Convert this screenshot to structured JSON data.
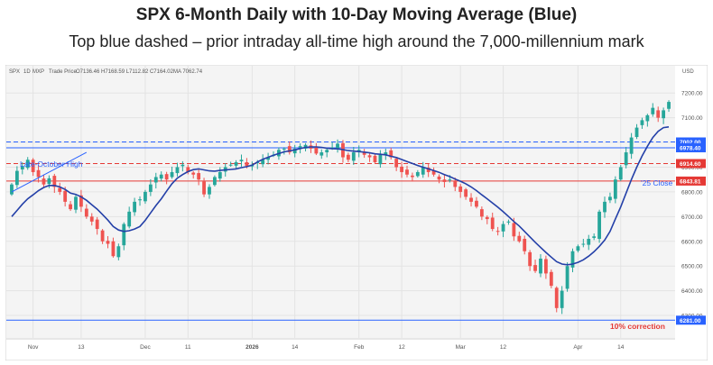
{
  "chart_data": {
    "type": "candlestick",
    "title": "SPX 6-Month Daily with 10-Day Moving Average (Blue)",
    "subtitle": "Top blue dashed – prior intraday all-time high around the 7,000-millennium mark",
    "header": {
      "symbol": "SPX",
      "interval": "1D",
      "exchange": "MXP",
      "price_type": "Trade Price",
      "ohlc": "O7136.46  H7168.59  L7112.82  C7164.02",
      "ma": "MA  7062.74",
      "currency": "USD"
    },
    "ylim": [
      6220,
      7270
    ],
    "y_ticks": [
      6300,
      6400,
      6500,
      6600,
      6700,
      6800,
      6900,
      7000,
      7100,
      7200
    ],
    "y_tick_labels": [
      "6300.00",
      "6400.00",
      "6500.00",
      "6600.00",
      "6700.00",
      "6800.00",
      "6900.00",
      "7000.00",
      "7100.00",
      "7200.00"
    ],
    "x_ticks": [
      {
        "label": "Nov",
        "index": 4,
        "bold": false
      },
      {
        "label": "13",
        "index": 13,
        "bold": false
      },
      {
        "label": "Dec",
        "index": 25,
        "bold": false
      },
      {
        "label": "11",
        "index": 33,
        "bold": false
      },
      {
        "label": "2026",
        "index": 45,
        "bold": true
      },
      {
        "label": "14",
        "index": 53,
        "bold": false
      },
      {
        "label": "Feb",
        "index": 65,
        "bold": false
      },
      {
        "label": "12",
        "index": 73,
        "bold": false
      },
      {
        "label": "Mar",
        "index": 84,
        "bold": false
      },
      {
        "label": "12",
        "index": 92,
        "bold": false
      },
      {
        "label": "Apr",
        "index": 106,
        "bold": false
      },
      {
        "label": "14",
        "index": 114,
        "bold": false
      }
    ],
    "levels": [
      {
        "value": 7002.0,
        "label": "7002.00",
        "color": "#2962ff",
        "style": "dashed"
      },
      {
        "value": 6978.4,
        "label": "6978.40",
        "color": "#2962ff",
        "style": "solid"
      },
      {
        "value": 6914.6,
        "label": "6914.60",
        "color": "#e53935",
        "style": "dashed"
      },
      {
        "value": 6843.81,
        "label": "6843.81",
        "color": "#e53935",
        "style": "solid"
      },
      {
        "value": 6281.0,
        "label": "6281.00",
        "color": "#2962ff",
        "style": "solid"
      }
    ],
    "annotations": [
      {
        "text": "Late-October High",
        "color": "#2962ff"
      },
      {
        "text": "'25 Close",
        "color": "#2962ff"
      },
      {
        "text": "10% correction",
        "color": "#e53935"
      }
    ],
    "close": [
      6830,
      6885,
      6905,
      6930,
      6880,
      6860,
      6830,
      6855,
      6820,
      6800,
      6760,
      6730,
      6780,
      6740,
      6700,
      6680,
      6650,
      6600,
      6590,
      6540,
      6580,
      6670,
      6720,
      6760,
      6770,
      6800,
      6830,
      6860,
      6870,
      6850,
      6880,
      6900,
      6910,
      6880,
      6870,
      6850,
      6790,
      6820,
      6860,
      6880,
      6900,
      6910,
      6920,
      6930,
      6905,
      6910,
      6920,
      6930,
      6940,
      6950,
      6970,
      6975,
      6960,
      6975,
      6985,
      6990,
      6975,
      6955,
      6960,
      6970,
      6980,
      6995,
      6940,
      6930,
      6960,
      6970,
      6950,
      6940,
      6920,
      6950,
      6960,
      6940,
      6900,
      6880,
      6870,
      6860,
      6880,
      6900,
      6880,
      6870,
      6850,
      6840,
      6850,
      6820,
      6800,
      6780,
      6760,
      6740,
      6700,
      6690,
      6650,
      6640,
      6670,
      6680,
      6620,
      6600,
      6560,
      6500,
      6480,
      6530,
      6470,
      6420,
      6330,
      6400,
      6500,
      6560,
      6580,
      6590,
      6610,
      6620,
      6720,
      6760,
      6780,
      6850,
      6900,
      6960,
      7020,
      7060,
      7090,
      7110,
      7140,
      7100,
      7130,
      7164
    ],
    "ma10": [
      6700,
      6725,
      6750,
      6772,
      6788,
      6805,
      6818,
      6826,
      6826,
      6820,
      6810,
      6795,
      6790,
      6780,
      6766,
      6748,
      6730,
      6708,
      6686,
      6660,
      6646,
      6640,
      6643,
      6650,
      6660,
      6685,
      6715,
      6745,
      6772,
      6803,
      6833,
      6856,
      6870,
      6882,
      6890,
      6893,
      6889,
      6885,
      6884,
      6887,
      6889,
      6891,
      6893,
      6898,
      6902,
      6908,
      6921,
      6932,
      6940,
      6948,
      6955,
      6962,
      6966,
      6970,
      6975,
      6980,
      6982,
      6982,
      6980,
      6977,
      6975,
      6974,
      6971,
      6967,
      6965,
      6963,
      6961,
      6958,
      6954,
      6952,
      6950,
      6944,
      6939,
      6931,
      6923,
      6915,
      6907,
      6900,
      6893,
      6886,
      6879,
      6870,
      6862,
      6852,
      6843,
      6833,
      6820,
      6805,
      6788,
      6772,
      6755,
      6738,
      6720,
      6700,
      6680,
      6662,
      6640,
      6618,
      6596,
      6575,
      6555,
      6536,
      6518,
      6508,
      6505,
      6508,
      6515,
      6525,
      6540,
      6558,
      6580,
      6605,
      6640,
      6690,
      6740,
      6795,
      6850,
      6900,
      6945,
      6985,
      7020,
      7045,
      7060,
      7063
    ]
  }
}
